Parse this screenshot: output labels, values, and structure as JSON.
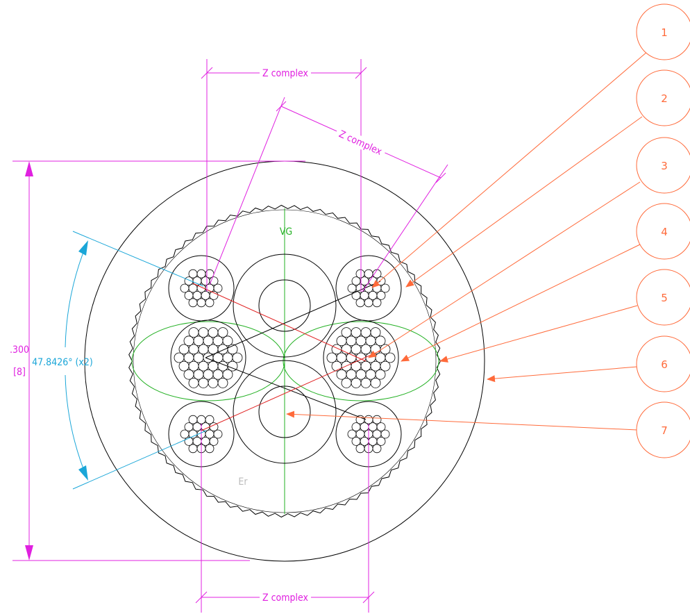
{
  "dimensions": {
    "z_complex_top": "Z complex",
    "z_complex_angled": "Z complex",
    "z_complex_bottom": "Z complex",
    "overall_inch": ".300",
    "overall_mm": "[8]",
    "angle": "47.8426° (x2)"
  },
  "labels": {
    "vg": "VG",
    "er": "Er"
  },
  "callouts": [
    "1",
    "2",
    "3",
    "4",
    "5",
    "6",
    "7"
  ],
  "colors": {
    "dimension": "#e020e0",
    "angle": "#1aa6d8",
    "callout": "#ff6a3a",
    "green": "#22b022",
    "red": "#e02020",
    "black": "#000000",
    "er": "#bbbbbb"
  }
}
